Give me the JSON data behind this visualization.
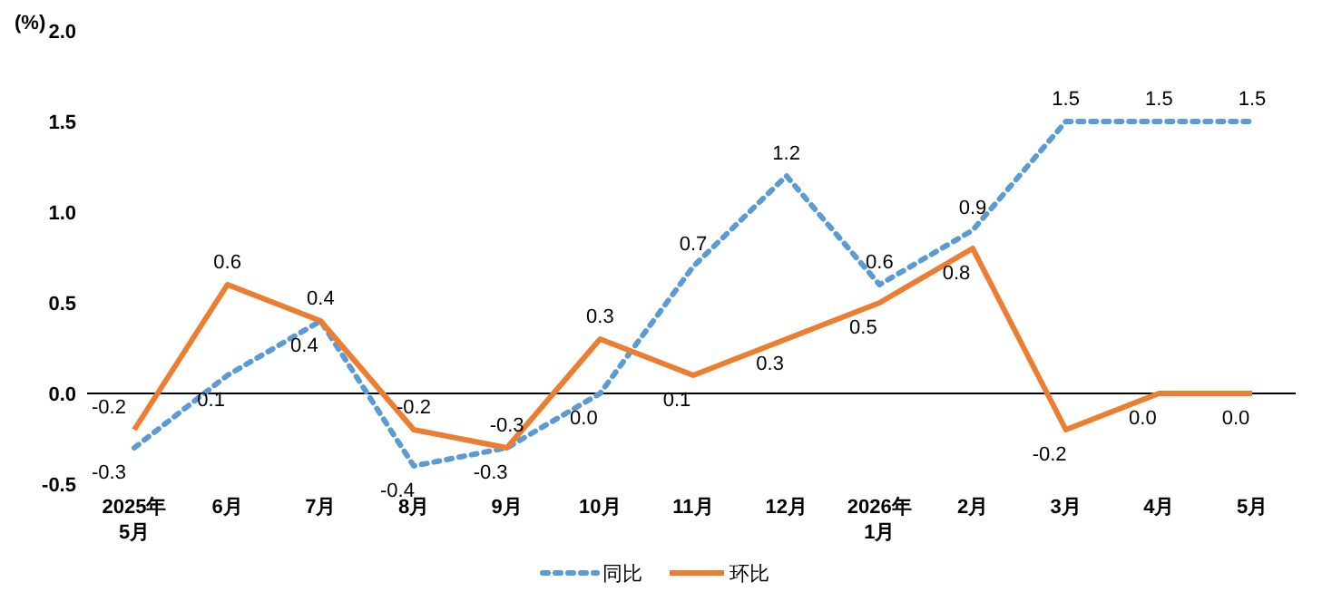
{
  "chart_data": {
    "type": "line",
    "ylabel": "(%)",
    "categories": [
      "2025年\n5月",
      "6月",
      "7月",
      "8月",
      "9月",
      "10月",
      "11月",
      "12月",
      "2026年\n1月",
      "2月",
      "3月",
      "4月",
      "5月"
    ],
    "ylim": [
      -0.5,
      2.0
    ],
    "yticks": [
      {
        "value": -0.5,
        "label": "-0.5"
      },
      {
        "value": 0,
        "label": "0.0"
      },
      {
        "value": 0.5,
        "label": "0.5"
      },
      {
        "value": 1,
        "label": "1.0"
      },
      {
        "value": 1.5,
        "label": "1.5"
      },
      {
        "value": 2,
        "label": "2.0"
      }
    ],
    "legend": "bottom",
    "series": [
      {
        "name": "同比",
        "color": "#5b9bd5",
        "line_style": "dotted",
        "values": [
          -0.3,
          0.1,
          0.4,
          -0.4,
          -0.3,
          0.0,
          0.7,
          1.2,
          0.6,
          0.9,
          1.5,
          1.5,
          1.5
        ],
        "value_labels": [
          "-0.3",
          "0.1",
          "0.4",
          "-0.4",
          "-0.3",
          "0.0",
          "0.7",
          "1.2",
          "0.6",
          "0.9",
          "1.5",
          "1.5",
          "1.5"
        ]
      },
      {
        "name": "环比",
        "color": "#ed7d31",
        "line_style": "solid",
        "values": [
          -0.2,
          0.6,
          0.4,
          -0.2,
          -0.3,
          0.3,
          0.1,
          0.3,
          0.5,
          0.8,
          -0.2,
          0.0,
          0.0
        ],
        "value_labels": [
          "-0.2",
          "0.6",
          "0.4",
          "-0.2",
          "-0.3",
          "0.3",
          "0.1",
          "0.3",
          "0.5",
          "0.8",
          "-0.2",
          "0.0",
          "0.0"
        ]
      }
    ]
  }
}
